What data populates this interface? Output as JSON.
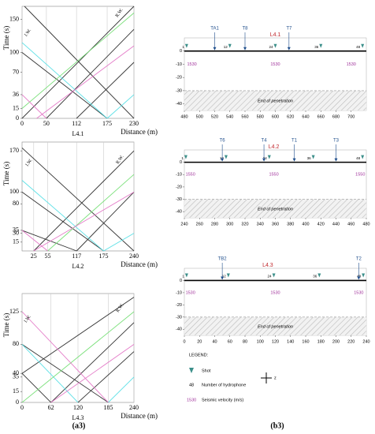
{
  "chart_data": [
    {
      "type": "lines",
      "title": "L4.1",
      "xlabel": "Distance (m)",
      "ylabel": "Time (s)",
      "grid": true,
      "xlim": [
        0,
        230
      ],
      "xticks": [
        0,
        50,
        112,
        175,
        230
      ],
      "ylim": [
        0,
        170
      ],
      "yticks": [
        0,
        15,
        36,
        70,
        100,
        150
      ],
      "annotations": [
        {
          "text": "I.W.",
          "x": 12,
          "y": 130
        },
        {
          "text": "R.W.",
          "x": 200,
          "y": 160
        }
      ],
      "series": [
        {
          "color": "#333333",
          "x": [
            5,
            230
          ],
          "values": [
            170,
            0
          ]
        },
        {
          "color": "#333333",
          "x": [
            0,
            175
          ],
          "values": [
            100,
            0
          ]
        },
        {
          "color": "#333333",
          "x": [
            0,
            230
          ],
          "values": [
            0,
            170
          ]
        },
        {
          "color": "#333333",
          "x": [
            50,
            230
          ],
          "values": [
            0,
            135
          ]
        },
        {
          "color": "#333333",
          "x": [
            112,
            230
          ],
          "values": [
            0,
            85
          ]
        },
        {
          "color": "#5ce0e6",
          "x": [
            0,
            175
          ],
          "values": [
            115,
            0
          ]
        },
        {
          "color": "#5ce0e6",
          "x": [
            175,
            230
          ],
          "values": [
            0,
            36
          ]
        },
        {
          "color": "#7be07b",
          "x": [
            0,
            230
          ],
          "values": [
            15,
            160
          ]
        },
        {
          "color": "#e47bc8",
          "x": [
            30,
            230
          ],
          "values": [
            0,
            110
          ]
        },
        {
          "color": "#e47bc8",
          "x": [
            0,
            50
          ],
          "values": [
            36,
            0
          ]
        }
      ]
    },
    {
      "type": "lines",
      "title": "L4.2",
      "xlabel": "Distance (m)",
      "ylabel": "Time (s)",
      "grid": true,
      "xlim": [
        0,
        240
      ],
      "xticks": [
        25,
        55,
        117,
        175,
        240
      ],
      "ylim": [
        0,
        185
      ],
      "yticks": [
        15,
        30,
        35,
        80,
        100,
        170
      ],
      "annotations": [
        {
          "text": "I.W.",
          "x": 15,
          "y": 150
        },
        {
          "text": "R.W.",
          "x": 210,
          "y": 155
        }
      ],
      "series": [
        {
          "color": "#333333",
          "x": [
            0,
            240
          ],
          "values": [
            175,
            0
          ]
        },
        {
          "color": "#333333",
          "x": [
            0,
            175
          ],
          "values": [
            100,
            0
          ]
        },
        {
          "color": "#333333",
          "x": [
            0,
            117
          ],
          "values": [
            35,
            0
          ]
        },
        {
          "color": "#333333",
          "x": [
            25,
            240
          ],
          "values": [
            0,
            170
          ]
        },
        {
          "color": "#333333",
          "x": [
            117,
            240
          ],
          "values": [
            0,
            100
          ]
        },
        {
          "color": "#5ce0e6",
          "x": [
            0,
            175
          ],
          "values": [
            120,
            0
          ]
        },
        {
          "color": "#5ce0e6",
          "x": [
            175,
            240
          ],
          "values": [
            0,
            30
          ]
        },
        {
          "color": "#7be07b",
          "x": [
            55,
            240
          ],
          "values": [
            0,
            130
          ]
        },
        {
          "color": "#e47bc8",
          "x": [
            0,
            55
          ],
          "values": [
            35,
            0
          ]
        },
        {
          "color": "#e47bc8",
          "x": [
            25,
            240
          ],
          "values": [
            0,
            100
          ]
        }
      ]
    },
    {
      "type": "lines",
      "title": "L4.3",
      "xlabel": "Distance (m)",
      "ylabel": "Time (s)",
      "grid": true,
      "xlim": [
        0,
        240
      ],
      "xticks": [
        0,
        62,
        120,
        185,
        240
      ],
      "ylim": [
        0,
        150
      ],
      "yticks": [
        0,
        15,
        35,
        40,
        80,
        125
      ],
      "annotations": [
        {
          "text": "I.W.",
          "x": 12,
          "y": 115
        },
        {
          "text": "R.W.",
          "x": 210,
          "y": 130
        }
      ],
      "series": [
        {
          "color": "#333333",
          "x": [
            0,
            185
          ],
          "values": [
            80,
            0
          ]
        },
        {
          "color": "#333333",
          "x": [
            0,
            62
          ],
          "values": [
            40,
            0
          ]
        },
        {
          "color": "#333333",
          "x": [
            0,
            240
          ],
          "values": [
            40,
            145
          ]
        },
        {
          "color": "#333333",
          "x": [
            62,
            240
          ],
          "values": [
            0,
            110
          ]
        },
        {
          "color": "#333333",
          "x": [
            120,
            240
          ],
          "values": [
            0,
            70
          ]
        },
        {
          "color": "#5ce0e6",
          "x": [
            0,
            120
          ],
          "values": [
            80,
            0
          ]
        },
        {
          "color": "#5ce0e6",
          "x": [
            185,
            240
          ],
          "values": [
            0,
            35
          ]
        },
        {
          "color": "#7be07b",
          "x": [
            0,
            240
          ],
          "values": [
            0,
            125
          ]
        },
        {
          "color": "#e47bc8",
          "x": [
            0,
            185
          ],
          "values": [
            125,
            0
          ]
        },
        {
          "color": "#e47bc8",
          "x": [
            62,
            240
          ],
          "values": [
            0,
            80
          ]
        }
      ]
    },
    {
      "type": "profile",
      "title": "L4.1",
      "xlim": [
        480,
        720
      ],
      "xticks": [
        480,
        500,
        520,
        540,
        560,
        580,
        600,
        620,
        640,
        660,
        680,
        700
      ],
      "ylim": [
        -45,
        10
      ],
      "yticks": [
        0,
        -10,
        -20,
        -30,
        -40
      ],
      "penetration_top": -30,
      "annotation": {
        "text": "End of penetration",
        "x": 600,
        "y": -38
      },
      "title_x": 600,
      "shots": [
        {
          "label": "TA1",
          "x": 520
        },
        {
          "label": "T8",
          "x": 560
        },
        {
          "label": "T7",
          "x": 618
        }
      ],
      "hydrophones": [
        {
          "value": 1,
          "x": 483
        },
        {
          "value": 12,
          "x": 540
        },
        {
          "value": 24,
          "x": 600
        },
        {
          "value": 36,
          "x": 660
        },
        {
          "value": 48,
          "x": 715
        }
      ],
      "velocities": [
        {
          "value": 1530,
          "x": 490,
          "y": -10
        },
        {
          "value": 1530,
          "x": 600,
          "y": -10
        },
        {
          "value": 1530,
          "x": 700,
          "y": -10
        }
      ]
    },
    {
      "type": "profile",
      "title": "L4.2",
      "xlim": [
        240,
        480
      ],
      "xticks": [
        240,
        260,
        280,
        300,
        320,
        340,
        360,
        380,
        400,
        420,
        440,
        460,
        480
      ],
      "ylim": [
        -45,
        10
      ],
      "yticks": [
        0,
        -10,
        -20,
        -30,
        -40
      ],
      "penetration_top": -30,
      "annotation": {
        "text": "End of penetration",
        "x": 360,
        "y": -38
      },
      "title_x": 358,
      "shots": [
        {
          "label": "T6",
          "x": 290
        },
        {
          "label": "T4",
          "x": 345
        },
        {
          "label": "T1",
          "x": 385
        },
        {
          "label": "T3",
          "x": 440
        }
      ],
      "hydrophones": [
        {
          "value": 1,
          "x": 242
        },
        {
          "value": 12,
          "x": 295
        },
        {
          "value": 24,
          "x": 352
        },
        {
          "value": 36,
          "x": 410
        },
        {
          "value": 48,
          "x": 475
        }
      ],
      "velocities": [
        {
          "value": 1550,
          "x": 248,
          "y": -10
        },
        {
          "value": 1550,
          "x": 358,
          "y": -10
        },
        {
          "value": 1550,
          "x": 472,
          "y": -10
        }
      ]
    },
    {
      "type": "profile",
      "title": "L4.3",
      "xlim": [
        0,
        240
      ],
      "xticks": [
        0,
        20,
        40,
        60,
        80,
        100,
        120,
        140,
        160,
        180,
        200,
        220,
        240
      ],
      "ylim": [
        -45,
        10
      ],
      "yticks": [
        0,
        -10,
        -20,
        -30,
        -40
      ],
      "penetration_top": -30,
      "annotation": {
        "text": "End of penetration",
        "x": 120,
        "y": -38
      },
      "title_x": 110,
      "shots": [
        {
          "label": "TB2",
          "x": 50
        },
        {
          "label": "T2",
          "x": 230
        }
      ],
      "hydrophones": [
        {
          "value": 1,
          "x": 3
        },
        {
          "value": 12,
          "x": 58
        },
        {
          "value": 24,
          "x": 118
        },
        {
          "value": 36,
          "x": 178
        },
        {
          "value": 48,
          "x": 236
        }
      ],
      "velocities": [
        {
          "value": 1530,
          "x": 8,
          "y": -10
        },
        {
          "value": 1530,
          "x": 120,
          "y": -10
        },
        {
          "value": 1530,
          "x": 230,
          "y": -10
        }
      ]
    }
  ],
  "legend": {
    "title": "LEGEND:",
    "shot": "Shot",
    "hydrophone_sample": "48",
    "hydrophone": "Number of hydrophone",
    "velocity_sample": "1530",
    "velocity": "Seismic velocity (m/s)",
    "compass": "z"
  },
  "panel_labels": [
    "(a3)",
    "(b3)"
  ]
}
